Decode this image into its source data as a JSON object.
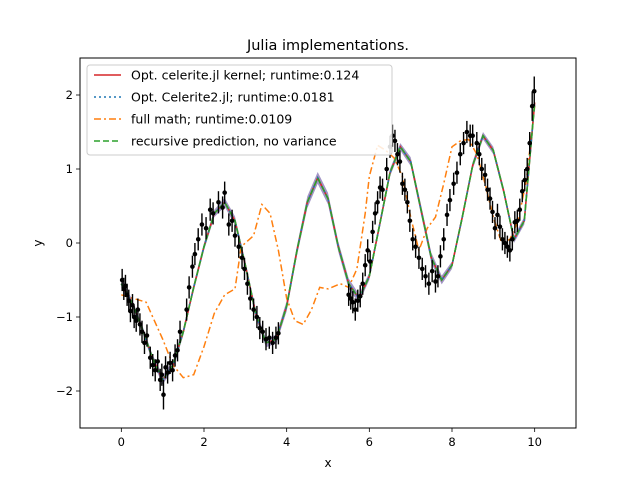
{
  "chart_data": {
    "type": "line",
    "title": "Julia implementations.",
    "xlabel": "x",
    "ylabel": "y",
    "xlim": [
      -1,
      11
    ],
    "ylim": [
      -2.5,
      2.5
    ],
    "xticks": [
      0,
      2,
      4,
      6,
      8,
      10
    ],
    "yticks": [
      -2,
      -1,
      0,
      1,
      2
    ],
    "xtick_labels": [
      "0",
      "2",
      "4",
      "6",
      "8",
      "10"
    ],
    "ytick_labels": [
      "−2",
      "−1",
      "0",
      "1",
      "2"
    ],
    "grid": false,
    "legend_position": "top-left",
    "series": [
      {
        "name": "Opt. celerite.jl kernel; runtime:0.124",
        "color": "#d62728",
        "style": "solid",
        "x": [
          0,
          0.25,
          0.5,
          0.75,
          1.0,
          1.25,
          1.5,
          1.75,
          2.0,
          2.25,
          2.5,
          2.75,
          3.0,
          3.25,
          3.5,
          3.75,
          4.0,
          4.25,
          4.5,
          4.75,
          5.0,
          5.25,
          5.5,
          5.75,
          6.0,
          6.25,
          6.5,
          6.75,
          7.0,
          7.25,
          7.5,
          7.75,
          8.0,
          8.25,
          8.5,
          8.75,
          9.0,
          9.25,
          9.5,
          9.75,
          10.0
        ],
        "y": [
          -0.55,
          -0.8,
          -1.15,
          -1.55,
          -1.85,
          -1.65,
          -1.2,
          -0.6,
          -0.05,
          0.4,
          0.55,
          0.3,
          -0.3,
          -0.95,
          -1.35,
          -1.3,
          -0.85,
          -0.1,
          0.55,
          0.88,
          0.6,
          -0.05,
          -0.55,
          -0.75,
          -0.45,
          0.25,
          0.95,
          1.3,
          1.1,
          0.45,
          -0.2,
          -0.5,
          -0.3,
          0.35,
          1.05,
          1.45,
          1.25,
          0.7,
          0.05,
          0.3,
          1.9
        ]
      },
      {
        "name": "Opt. Celerite2.jl; runtime:0.0181",
        "color": "#1f77b4",
        "style": "dotted",
        "x": [
          0,
          0.25,
          0.5,
          0.75,
          1.0,
          1.25,
          1.5,
          1.75,
          2.0,
          2.25,
          2.5,
          2.75,
          3.0,
          3.25,
          3.5,
          3.75,
          4.0,
          4.25,
          4.5,
          4.75,
          5.0,
          5.25,
          5.5,
          5.75,
          6.0,
          6.25,
          6.5,
          6.75,
          7.0,
          7.25,
          7.5,
          7.75,
          8.0,
          8.25,
          8.5,
          8.75,
          9.0,
          9.25,
          9.5,
          9.75,
          10.0
        ],
        "y": [
          -0.55,
          -0.8,
          -1.15,
          -1.55,
          -1.85,
          -1.65,
          -1.2,
          -0.6,
          -0.05,
          0.4,
          0.55,
          0.3,
          -0.3,
          -0.95,
          -1.35,
          -1.3,
          -0.85,
          -0.1,
          0.55,
          0.88,
          0.6,
          -0.05,
          -0.55,
          -0.75,
          -0.45,
          0.25,
          0.95,
          1.3,
          1.1,
          0.45,
          -0.2,
          -0.5,
          -0.3,
          0.35,
          1.05,
          1.45,
          1.25,
          0.7,
          0.05,
          0.3,
          1.9
        ]
      },
      {
        "name": "full math; runtime:0.0109",
        "color": "#ff7f0e",
        "style": "dashdot",
        "x": [
          0,
          0.3,
          0.6,
          0.8,
          1.0,
          1.25,
          1.5,
          1.75,
          2.0,
          2.25,
          2.5,
          2.75,
          2.9,
          3.0,
          3.2,
          3.4,
          3.6,
          3.8,
          4.0,
          4.2,
          4.4,
          4.6,
          4.8,
          5.0,
          5.3,
          5.5,
          5.7,
          5.9,
          6.0,
          6.2,
          6.4,
          6.6,
          6.8,
          7.0,
          7.2,
          7.4,
          7.6,
          7.8,
          8.0,
          8.2,
          8.4,
          8.6,
          8.8,
          9.0,
          9.2,
          9.4,
          9.6,
          9.8,
          10.0
        ],
        "y": [
          -0.7,
          -0.75,
          -0.8,
          -1.05,
          -1.3,
          -1.65,
          -1.82,
          -1.78,
          -1.4,
          -0.95,
          -0.7,
          -0.62,
          -0.05,
          0.0,
          0.1,
          0.52,
          0.4,
          -0.1,
          -0.75,
          -1.05,
          -1.1,
          -0.9,
          -0.6,
          -0.62,
          -0.55,
          -0.6,
          -0.35,
          0.4,
          0.9,
          1.32,
          1.25,
          1.15,
          0.9,
          0.35,
          -0.1,
          0.2,
          0.35,
          0.8,
          1.3,
          1.38,
          1.4,
          1.2,
          0.8,
          0.35,
          0.0,
          0.05,
          0.3,
          0.85,
          1.85
        ]
      },
      {
        "name": "recursive prediction, no variance",
        "color": "#2ca02c",
        "style": "dashed",
        "x": [
          0,
          0.25,
          0.5,
          0.75,
          1.0,
          1.25,
          1.5,
          1.75,
          2.0,
          2.25,
          2.5,
          2.75,
          3.0,
          3.25,
          3.5,
          3.75,
          4.0,
          4.25,
          4.5,
          4.75,
          5.0,
          5.25,
          5.5,
          5.75,
          6.0,
          6.25,
          6.5,
          6.75,
          7.0,
          7.25,
          7.5,
          7.75,
          8.0,
          8.25,
          8.5,
          8.75,
          9.0,
          9.25,
          9.5,
          9.75,
          10.0
        ],
        "y": [
          -0.55,
          -0.8,
          -1.15,
          -1.55,
          -1.85,
          -1.65,
          -1.2,
          -0.6,
          -0.05,
          0.4,
          0.55,
          0.3,
          -0.3,
          -0.95,
          -1.35,
          -1.3,
          -0.85,
          -0.1,
          0.55,
          0.88,
          0.6,
          -0.05,
          -0.55,
          -0.75,
          -0.45,
          0.25,
          0.95,
          1.3,
          1.1,
          0.45,
          -0.2,
          -0.5,
          -0.3,
          0.35,
          1.05,
          1.45,
          1.25,
          0.7,
          0.05,
          0.3,
          1.9
        ]
      }
    ],
    "band": {
      "color": "#7b68ae",
      "x": [
        0,
        0.25,
        0.5,
        0.75,
        1.0,
        1.25,
        1.5,
        1.75,
        2.0,
        2.25,
        2.5,
        2.75,
        3.0,
        3.25,
        3.5,
        3.75,
        4.0,
        4.25,
        4.5,
        4.75,
        5.0,
        5.25,
        5.5,
        5.75,
        6.0,
        6.25,
        6.5,
        6.75,
        7.0,
        7.25,
        7.5,
        7.75,
        8.0,
        8.25,
        8.5,
        8.75,
        9.0,
        9.25,
        9.5,
        9.75,
        10.0
      ],
      "upper": [
        -0.49,
        -0.75,
        -1.1,
        -1.5,
        -1.79,
        -1.59,
        -1.15,
        -0.55,
        0.0,
        0.45,
        0.61,
        0.36,
        -0.24,
        -0.89,
        -1.29,
        -1.24,
        -0.78,
        -0.03,
        0.63,
        0.96,
        0.68,
        0.02,
        -0.48,
        -0.69,
        -0.4,
        0.3,
        1.0,
        1.35,
        1.16,
        0.52,
        -0.13,
        -0.44,
        -0.25,
        0.4,
        1.1,
        1.5,
        1.3,
        0.75,
        0.1,
        0.35,
        1.95
      ],
      "lower": [
        -0.61,
        -0.85,
        -1.2,
        -1.6,
        -1.91,
        -1.71,
        -1.25,
        -0.65,
        -0.1,
        0.35,
        0.49,
        0.24,
        -0.36,
        -1.01,
        -1.41,
        -1.36,
        -0.92,
        -0.17,
        0.47,
        0.8,
        0.52,
        -0.12,
        -0.62,
        -0.81,
        -0.5,
        0.2,
        0.9,
        1.25,
        1.04,
        0.38,
        -0.27,
        -0.56,
        -0.35,
        0.3,
        1.0,
        1.4,
        1.2,
        0.65,
        0.0,
        0.25,
        1.85
      ]
    },
    "observations": {
      "color": "#000000",
      "x": [
        0.02,
        0.06,
        0.1,
        0.14,
        0.18,
        0.22,
        0.27,
        0.31,
        0.36,
        0.4,
        0.45,
        0.5,
        0.56,
        0.62,
        0.7,
        0.76,
        0.82,
        0.88,
        0.94,
        0.98,
        1.02,
        1.07,
        1.12,
        1.18,
        1.24,
        1.3,
        1.36,
        1.42,
        1.58,
        1.64,
        1.72,
        1.78,
        1.86,
        1.95,
        2.05,
        2.15,
        2.22,
        2.35,
        2.45,
        2.5,
        2.6,
        2.68,
        2.75,
        2.84,
        2.92,
        2.98,
        3.05,
        3.12,
        3.2,
        3.28,
        3.35,
        3.42,
        3.5,
        3.58,
        3.66,
        3.74,
        3.8,
        5.5,
        5.55,
        5.6,
        5.66,
        5.72,
        5.78,
        5.84,
        5.9,
        5.96,
        6.02,
        6.08,
        6.14,
        6.2,
        6.26,
        6.32,
        6.42,
        6.5,
        6.56,
        6.62,
        6.68,
        6.74,
        6.8,
        6.86,
        6.92,
        6.98,
        7.05,
        7.12,
        7.2,
        7.28,
        7.36,
        7.44,
        7.52,
        7.6,
        7.66,
        7.72,
        7.8,
        7.88,
        7.95,
        8.04,
        8.12,
        8.2,
        8.28,
        8.36,
        8.44,
        8.5,
        8.6,
        8.66,
        8.72,
        8.8,
        8.86,
        8.92,
        8.98,
        9.04,
        9.1,
        9.16,
        9.22,
        9.28,
        9.34,
        9.4,
        9.46,
        9.52,
        9.58,
        9.64,
        9.7,
        9.76,
        9.82,
        9.88,
        9.94,
        9.99
      ],
      "y": [
        -0.5,
        -0.62,
        -0.58,
        -0.7,
        -0.78,
        -0.92,
        -0.84,
        -1.0,
        -1.05,
        -0.9,
        -1.1,
        -1.2,
        -1.35,
        -1.25,
        -1.55,
        -1.65,
        -1.72,
        -1.6,
        -1.85,
        -1.78,
        -2.05,
        -1.68,
        -1.75,
        -1.62,
        -1.72,
        -1.52,
        -1.45,
        -1.2,
        -0.9,
        -0.6,
        -0.32,
        -0.15,
        0.05,
        0.25,
        0.2,
        0.45,
        0.4,
        0.55,
        0.48,
        0.68,
        0.25,
        0.3,
        0.1,
        -0.05,
        -0.2,
        -0.35,
        -0.55,
        -0.75,
        -0.9,
        -1.0,
        -1.15,
        -1.2,
        -1.3,
        -1.28,
        -1.35,
        -1.28,
        -1.22,
        -0.7,
        -0.75,
        -0.8,
        -0.9,
        -0.78,
        -0.72,
        -0.55,
        -0.3,
        -0.1,
        -0.25,
        0.15,
        0.4,
        0.55,
        0.75,
        0.72,
        1.0,
        1.3,
        1.45,
        1.38,
        1.2,
        1.1,
        0.8,
        0.72,
        0.55,
        0.3,
        0.05,
        -0.05,
        -0.2,
        -0.35,
        -0.45,
        -0.55,
        -0.38,
        -0.52,
        -0.45,
        -0.18,
        0.05,
        0.38,
        0.58,
        0.8,
        0.95,
        1.2,
        1.35,
        1.5,
        1.45,
        1.45,
        1.35,
        1.2,
        1.0,
        0.92,
        0.72,
        0.6,
        0.42,
        0.2,
        0.38,
        0.22,
        0.05,
        0.0,
        -0.05,
        -0.1,
        0.05,
        0.28,
        0.3,
        0.45,
        0.7,
        0.85,
        1.0,
        1.35,
        1.85,
        2.05
      ],
      "yerr": [
        0.15,
        0.15,
        0.15,
        0.15,
        0.15,
        0.15,
        0.15,
        0.15,
        0.15,
        0.15,
        0.15,
        0.15,
        0.15,
        0.15,
        0.15,
        0.15,
        0.15,
        0.15,
        0.15,
        0.15,
        0.2,
        0.15,
        0.15,
        0.15,
        0.15,
        0.15,
        0.15,
        0.15,
        0.15,
        0.15,
        0.15,
        0.15,
        0.15,
        0.15,
        0.15,
        0.15,
        0.15,
        0.15,
        0.15,
        0.15,
        0.15,
        0.15,
        0.15,
        0.15,
        0.15,
        0.15,
        0.15,
        0.15,
        0.15,
        0.15,
        0.15,
        0.15,
        0.15,
        0.15,
        0.15,
        0.15,
        0.15,
        0.15,
        0.15,
        0.15,
        0.15,
        0.15,
        0.15,
        0.15,
        0.15,
        0.15,
        0.15,
        0.15,
        0.15,
        0.15,
        0.15,
        0.15,
        0.15,
        0.15,
        0.15,
        0.15,
        0.15,
        0.15,
        0.15,
        0.15,
        0.15,
        0.15,
        0.15,
        0.15,
        0.15,
        0.15,
        0.15,
        0.15,
        0.15,
        0.15,
        0.15,
        0.15,
        0.15,
        0.15,
        0.15,
        0.15,
        0.15,
        0.15,
        0.15,
        0.15,
        0.15,
        0.15,
        0.15,
        0.15,
        0.15,
        0.15,
        0.15,
        0.15,
        0.15,
        0.15,
        0.15,
        0.15,
        0.15,
        0.15,
        0.15,
        0.15,
        0.15,
        0.15,
        0.15,
        0.15,
        0.15,
        0.15,
        0.15,
        0.15,
        0.2,
        0.2
      ]
    }
  }
}
